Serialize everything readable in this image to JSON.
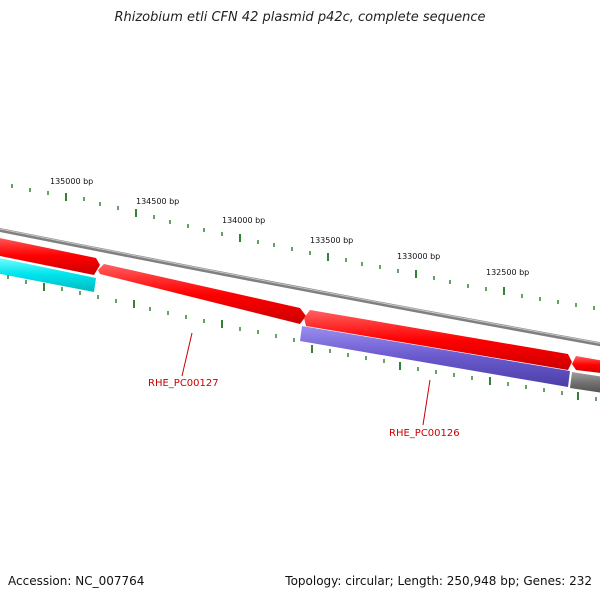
{
  "title": "Rhizobium etli CFN 42 plasmid p42c, complete sequence",
  "accession": "Accession: NC_007764",
  "summary": "Topology: circular; Length: 250,948 bp; Genes: 232",
  "colors": {
    "backbone": "#808080",
    "forward_gene": "#ff0000",
    "reverse_gene_blue": "#6a5acd",
    "reverse_gene_cyan": "#00e5ee",
    "reverse_gene_gray": "#707070",
    "tick": "#006400",
    "gene_label": "#cc0000"
  },
  "scale_labels": [
    "135000 bp",
    "134500 bp",
    "134000 bp",
    "133500 bp",
    "133000 bp",
    "132500 bp"
  ],
  "gene_labels": [
    "RHE_PC00127",
    "RHE_PC00126"
  ]
}
